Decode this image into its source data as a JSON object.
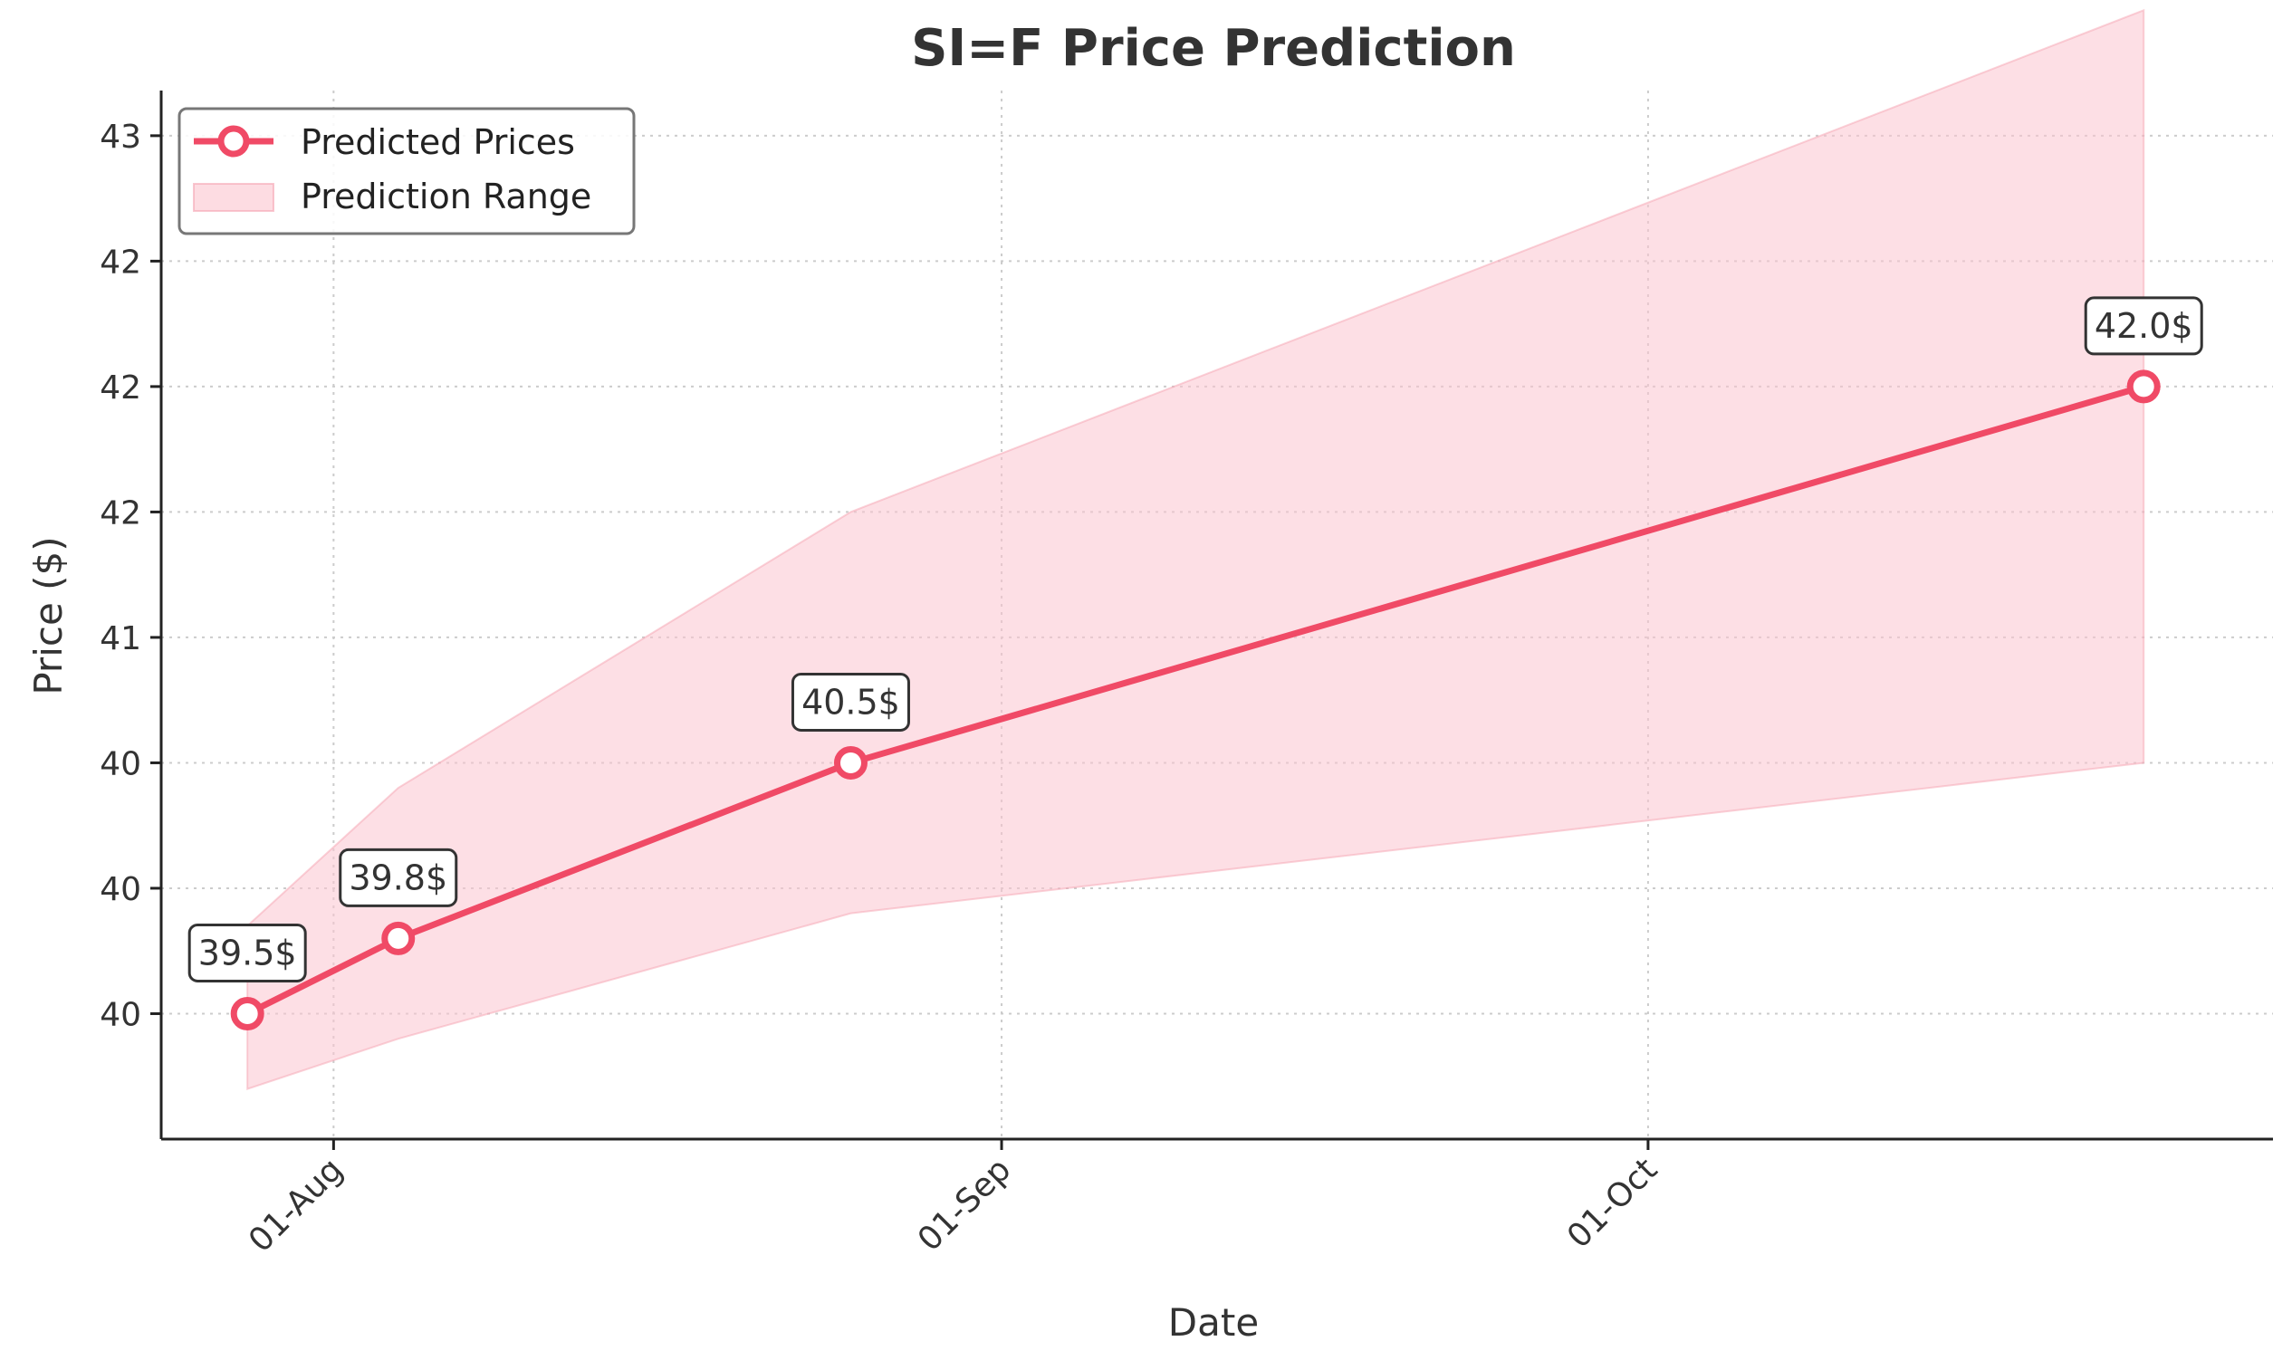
{
  "chart_data": {
    "type": "line",
    "title": "SI=F Price Prediction",
    "xlabel": "Date",
    "ylabel": "Price ($)",
    "x": [
      "2025-07-28",
      "2025-08-04",
      "2025-08-25",
      "2025-10-24"
    ],
    "series": [
      {
        "name": "Predicted Prices",
        "values": [
          39.5,
          39.8,
          40.5,
          42.0
        ],
        "color": "#f04a66",
        "labels": [
          "39.5$",
          "39.8$",
          "40.5$",
          "42.0$"
        ]
      }
    ],
    "range": {
      "name": "Prediction Range",
      "x": [
        "2025-07-28",
        "2025-08-04",
        "2025-08-25",
        "2025-10-24"
      ],
      "lower": [
        39.2,
        39.4,
        39.9,
        40.5
      ],
      "upper": [
        39.85,
        40.4,
        41.5,
        43.5
      ],
      "color": "#f04a66"
    },
    "x_ticks": [
      {
        "date": "2025-08-01",
        "label": "01-Aug"
      },
      {
        "date": "2025-09-01",
        "label": "01-Sep"
      },
      {
        "date": "2025-10-01",
        "label": "01-Oct"
      }
    ],
    "y_ticks": [
      {
        "value": 39.5,
        "label": "40"
      },
      {
        "value": 40.0,
        "label": "40"
      },
      {
        "value": 40.5,
        "label": "40"
      },
      {
        "value": 41.0,
        "label": "41"
      },
      {
        "value": 41.5,
        "label": "42"
      },
      {
        "value": 42.0,
        "label": "42"
      },
      {
        "value": 42.5,
        "label": "42"
      },
      {
        "value": 43.0,
        "label": "43"
      }
    ],
    "xlim": [
      "2025-07-24",
      "2025-10-30"
    ],
    "ylim": [
      39.0,
      43.18
    ],
    "grid": true,
    "legend_position": "top-left"
  }
}
